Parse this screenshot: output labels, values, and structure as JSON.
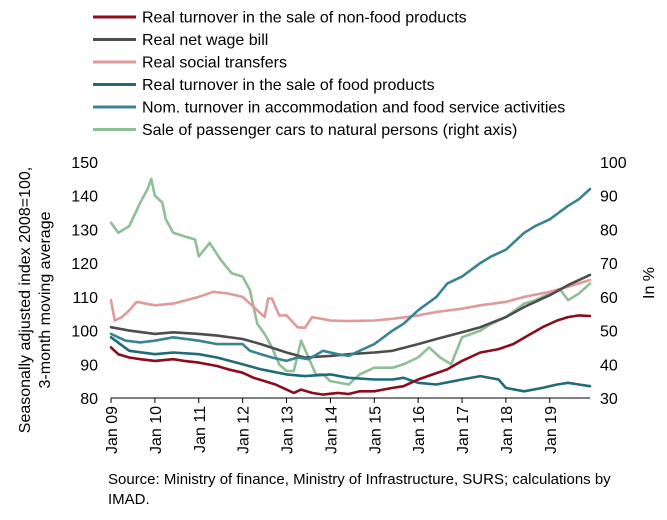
{
  "chart_data": {
    "type": "line",
    "x_start": "2009-01",
    "x_end": "2019-12",
    "x_ticks": [
      "Jan 09",
      "Jan 10",
      "Jan 11",
      "Jan 12",
      "Jan 13",
      "Jan 14",
      "Jan 15",
      "Jan 16",
      "Jan 17",
      "Jan 18",
      "Jan 19"
    ],
    "ylabel": "Seasonally adjusted index 2008=100, 3-month moving average",
    "ylim": [
      80,
      150
    ],
    "yticks": [
      80,
      90,
      100,
      110,
      120,
      130,
      140,
      150
    ],
    "y2label": "In %",
    "y2lim": [
      30,
      100
    ],
    "y2ticks": [
      30,
      40,
      50,
      60,
      70,
      80,
      90,
      100
    ],
    "grid": false,
    "legend_position": "top",
    "source": "Source: Ministry of finance, Ministry of Infrastructure, SURS; calculations by IMAD.",
    "series": [
      {
        "name": "Real turnover in the sale of non-food products",
        "color": "#8b0c1d",
        "axis": "left",
        "points": [
          [
            "2009-01",
            95
          ],
          [
            "2009-03",
            93
          ],
          [
            "2009-06",
            92
          ],
          [
            "2009-09",
            91.5
          ],
          [
            "2010-01",
            91
          ],
          [
            "2010-06",
            91.5
          ],
          [
            "2010-09",
            91
          ],
          [
            "2011-01",
            90.5
          ],
          [
            "2011-06",
            89.5
          ],
          [
            "2011-09",
            88.5
          ],
          [
            "2012-01",
            87.5
          ],
          [
            "2012-04",
            86
          ],
          [
            "2012-07",
            85
          ],
          [
            "2012-10",
            84
          ],
          [
            "2013-01",
            82.5
          ],
          [
            "2013-03",
            81.5
          ],
          [
            "2013-05",
            82.5
          ],
          [
            "2013-08",
            81.5
          ],
          [
            "2013-11",
            81
          ],
          [
            "2014-03",
            81.5
          ],
          [
            "2014-06",
            81.2
          ],
          [
            "2014-09",
            82
          ],
          [
            "2015-01",
            82
          ],
          [
            "2015-06",
            83
          ],
          [
            "2015-09",
            83.5
          ],
          [
            "2016-01",
            85.5
          ],
          [
            "2016-05",
            87
          ],
          [
            "2016-09",
            88.5
          ],
          [
            "2017-01",
            91
          ],
          [
            "2017-06",
            93.5
          ],
          [
            "2017-11",
            94.5
          ],
          [
            "2018-03",
            96
          ],
          [
            "2018-07",
            98.5
          ],
          [
            "2018-11",
            101
          ],
          [
            "2019-03",
            103
          ],
          [
            "2019-06",
            104
          ],
          [
            "2019-09",
            104.5
          ],
          [
            "2019-12",
            104.3
          ]
        ]
      },
      {
        "name": "Real net wage bill",
        "color": "#4d4d4d",
        "axis": "left",
        "points": [
          [
            "2009-01",
            101
          ],
          [
            "2009-06",
            100
          ],
          [
            "2010-01",
            99
          ],
          [
            "2010-06",
            99.5
          ],
          [
            "2011-01",
            99
          ],
          [
            "2011-06",
            98.5
          ],
          [
            "2012-01",
            97.5
          ],
          [
            "2012-06",
            96
          ],
          [
            "2013-01",
            93.5
          ],
          [
            "2013-06",
            92
          ],
          [
            "2014-01",
            92.5
          ],
          [
            "2014-06",
            93
          ],
          [
            "2015-01",
            93.5
          ],
          [
            "2015-06",
            94
          ],
          [
            "2016-01",
            96
          ],
          [
            "2016-06",
            97.5
          ],
          [
            "2017-01",
            99.5
          ],
          [
            "2017-06",
            101
          ],
          [
            "2018-01",
            104
          ],
          [
            "2018-06",
            107
          ],
          [
            "2019-01",
            110.5
          ],
          [
            "2019-06",
            113.5
          ],
          [
            "2019-12",
            116.5
          ]
        ]
      },
      {
        "name": "Real social transfers",
        "color": "#e09a9a",
        "axis": "left",
        "points": [
          [
            "2009-01",
            109
          ],
          [
            "2009-02",
            103
          ],
          [
            "2009-04",
            104
          ],
          [
            "2009-06",
            106
          ],
          [
            "2009-08",
            108.5
          ],
          [
            "2010-01",
            107.5
          ],
          [
            "2010-06",
            108
          ],
          [
            "2011-01",
            110
          ],
          [
            "2011-05",
            111.5
          ],
          [
            "2011-09",
            111
          ],
          [
            "2012-01",
            110
          ],
          [
            "2012-03",
            108
          ],
          [
            "2012-05",
            106
          ],
          [
            "2012-07",
            104
          ],
          [
            "2012-08",
            109.5
          ],
          [
            "2012-09",
            109.5
          ],
          [
            "2012-11",
            104.5
          ],
          [
            "2013-01",
            104.5
          ],
          [
            "2013-04",
            101
          ],
          [
            "2013-06",
            100.8
          ],
          [
            "2013-08",
            104
          ],
          [
            "2014-01",
            103
          ],
          [
            "2014-06",
            102.8
          ],
          [
            "2015-01",
            103
          ],
          [
            "2015-06",
            103.5
          ],
          [
            "2016-01",
            104.5
          ],
          [
            "2016-06",
            105.5
          ],
          [
            "2017-01",
            106.5
          ],
          [
            "2017-06",
            107.5
          ],
          [
            "2018-01",
            108.5
          ],
          [
            "2018-06",
            110
          ],
          [
            "2019-01",
            111.5
          ],
          [
            "2019-06",
            113
          ],
          [
            "2019-12",
            115
          ]
        ]
      },
      {
        "name": "Real turnover in the sale of food products",
        "color": "#1f6b78",
        "axis": "left",
        "points": [
          [
            "2009-01",
            98
          ],
          [
            "2009-06",
            94
          ],
          [
            "2010-01",
            93
          ],
          [
            "2010-06",
            93.5
          ],
          [
            "2011-01",
            93
          ],
          [
            "2011-06",
            92
          ],
          [
            "2012-01",
            90
          ],
          [
            "2012-06",
            88.5
          ],
          [
            "2013-01",
            87
          ],
          [
            "2013-06",
            86.5
          ],
          [
            "2014-01",
            87
          ],
          [
            "2014-06",
            86
          ],
          [
            "2015-01",
            85.5
          ],
          [
            "2015-06",
            85.5
          ],
          [
            "2015-09",
            86
          ],
          [
            "2016-01",
            84.5
          ],
          [
            "2016-06",
            84
          ],
          [
            "2017-01",
            85.5
          ],
          [
            "2017-06",
            86.5
          ],
          [
            "2017-11",
            85.5
          ],
          [
            "2018-01",
            83
          ],
          [
            "2018-06",
            82
          ],
          [
            "2018-11",
            83
          ],
          [
            "2019-03",
            84
          ],
          [
            "2019-06",
            84.5
          ],
          [
            "2019-09",
            84
          ],
          [
            "2019-12",
            83.5
          ]
        ]
      },
      {
        "name": "Nom. turnover in accommodation and food service activities",
        "color": "#3a8390",
        "axis": "left",
        "points": [
          [
            "2009-01",
            99
          ],
          [
            "2009-05",
            97
          ],
          [
            "2009-09",
            96.5
          ],
          [
            "2010-01",
            97
          ],
          [
            "2010-06",
            98
          ],
          [
            "2011-01",
            97
          ],
          [
            "2011-06",
            96
          ],
          [
            "2012-01",
            96
          ],
          [
            "2012-03",
            94
          ],
          [
            "2012-06",
            93
          ],
          [
            "2012-09",
            92
          ],
          [
            "2013-01",
            91
          ],
          [
            "2013-04",
            92
          ],
          [
            "2013-07",
            91.5
          ],
          [
            "2013-11",
            94
          ],
          [
            "2014-03",
            93
          ],
          [
            "2014-06",
            92.5
          ],
          [
            "2014-09",
            94
          ],
          [
            "2015-01",
            96
          ],
          [
            "2015-06",
            100
          ],
          [
            "2015-09",
            102
          ],
          [
            "2016-01",
            106
          ],
          [
            "2016-06",
            110
          ],
          [
            "2016-09",
            114
          ],
          [
            "2017-01",
            116
          ],
          [
            "2017-06",
            120
          ],
          [
            "2017-09",
            122
          ],
          [
            "2018-01",
            124
          ],
          [
            "2018-06",
            129
          ],
          [
            "2018-09",
            131
          ],
          [
            "2019-01",
            133
          ],
          [
            "2019-06",
            137
          ],
          [
            "2019-09",
            139
          ],
          [
            "2019-12",
            142
          ]
        ]
      },
      {
        "name": "Sale of passenger cars to natural persons (right axis)",
        "color": "#8fbf96",
        "axis": "right",
        "points": [
          [
            "2009-01",
            82
          ],
          [
            "2009-03",
            79
          ],
          [
            "2009-06",
            81
          ],
          [
            "2009-09",
            88
          ],
          [
            "2009-11",
            92
          ],
          [
            "2009-12",
            95
          ],
          [
            "2010-01",
            90
          ],
          [
            "2010-03",
            88
          ],
          [
            "2010-04",
            83
          ],
          [
            "2010-06",
            79
          ],
          [
            "2010-09",
            78
          ],
          [
            "2010-12",
            77
          ],
          [
            "2011-01",
            72
          ],
          [
            "2011-04",
            76
          ],
          [
            "2011-07",
            71
          ],
          [
            "2011-10",
            67
          ],
          [
            "2012-01",
            66
          ],
          [
            "2012-03",
            62
          ],
          [
            "2012-05",
            52
          ],
          [
            "2012-07",
            49
          ],
          [
            "2012-09",
            45
          ],
          [
            "2012-11",
            40
          ],
          [
            "2013-01",
            38
          ],
          [
            "2013-03",
            38
          ],
          [
            "2013-05",
            47
          ],
          [
            "2013-07",
            42
          ],
          [
            "2013-09",
            37
          ],
          [
            "2013-11",
            37
          ],
          [
            "2014-01",
            35
          ],
          [
            "2014-06",
            34
          ],
          [
            "2014-09",
            37
          ],
          [
            "2015-01",
            39
          ],
          [
            "2015-06",
            39
          ],
          [
            "2015-09",
            40
          ],
          [
            "2016-01",
            42
          ],
          [
            "2016-04",
            45
          ],
          [
            "2016-07",
            42
          ],
          [
            "2016-10",
            40
          ],
          [
            "2017-01",
            48
          ],
          [
            "2017-06",
            50
          ],
          [
            "2017-09",
            52
          ],
          [
            "2018-01",
            54
          ],
          [
            "2018-06",
            58
          ],
          [
            "2018-09",
            59
          ],
          [
            "2019-01",
            61
          ],
          [
            "2019-04",
            62
          ],
          [
            "2019-06",
            59
          ],
          [
            "2019-09",
            61
          ],
          [
            "2019-12",
            64
          ]
        ]
      }
    ]
  }
}
